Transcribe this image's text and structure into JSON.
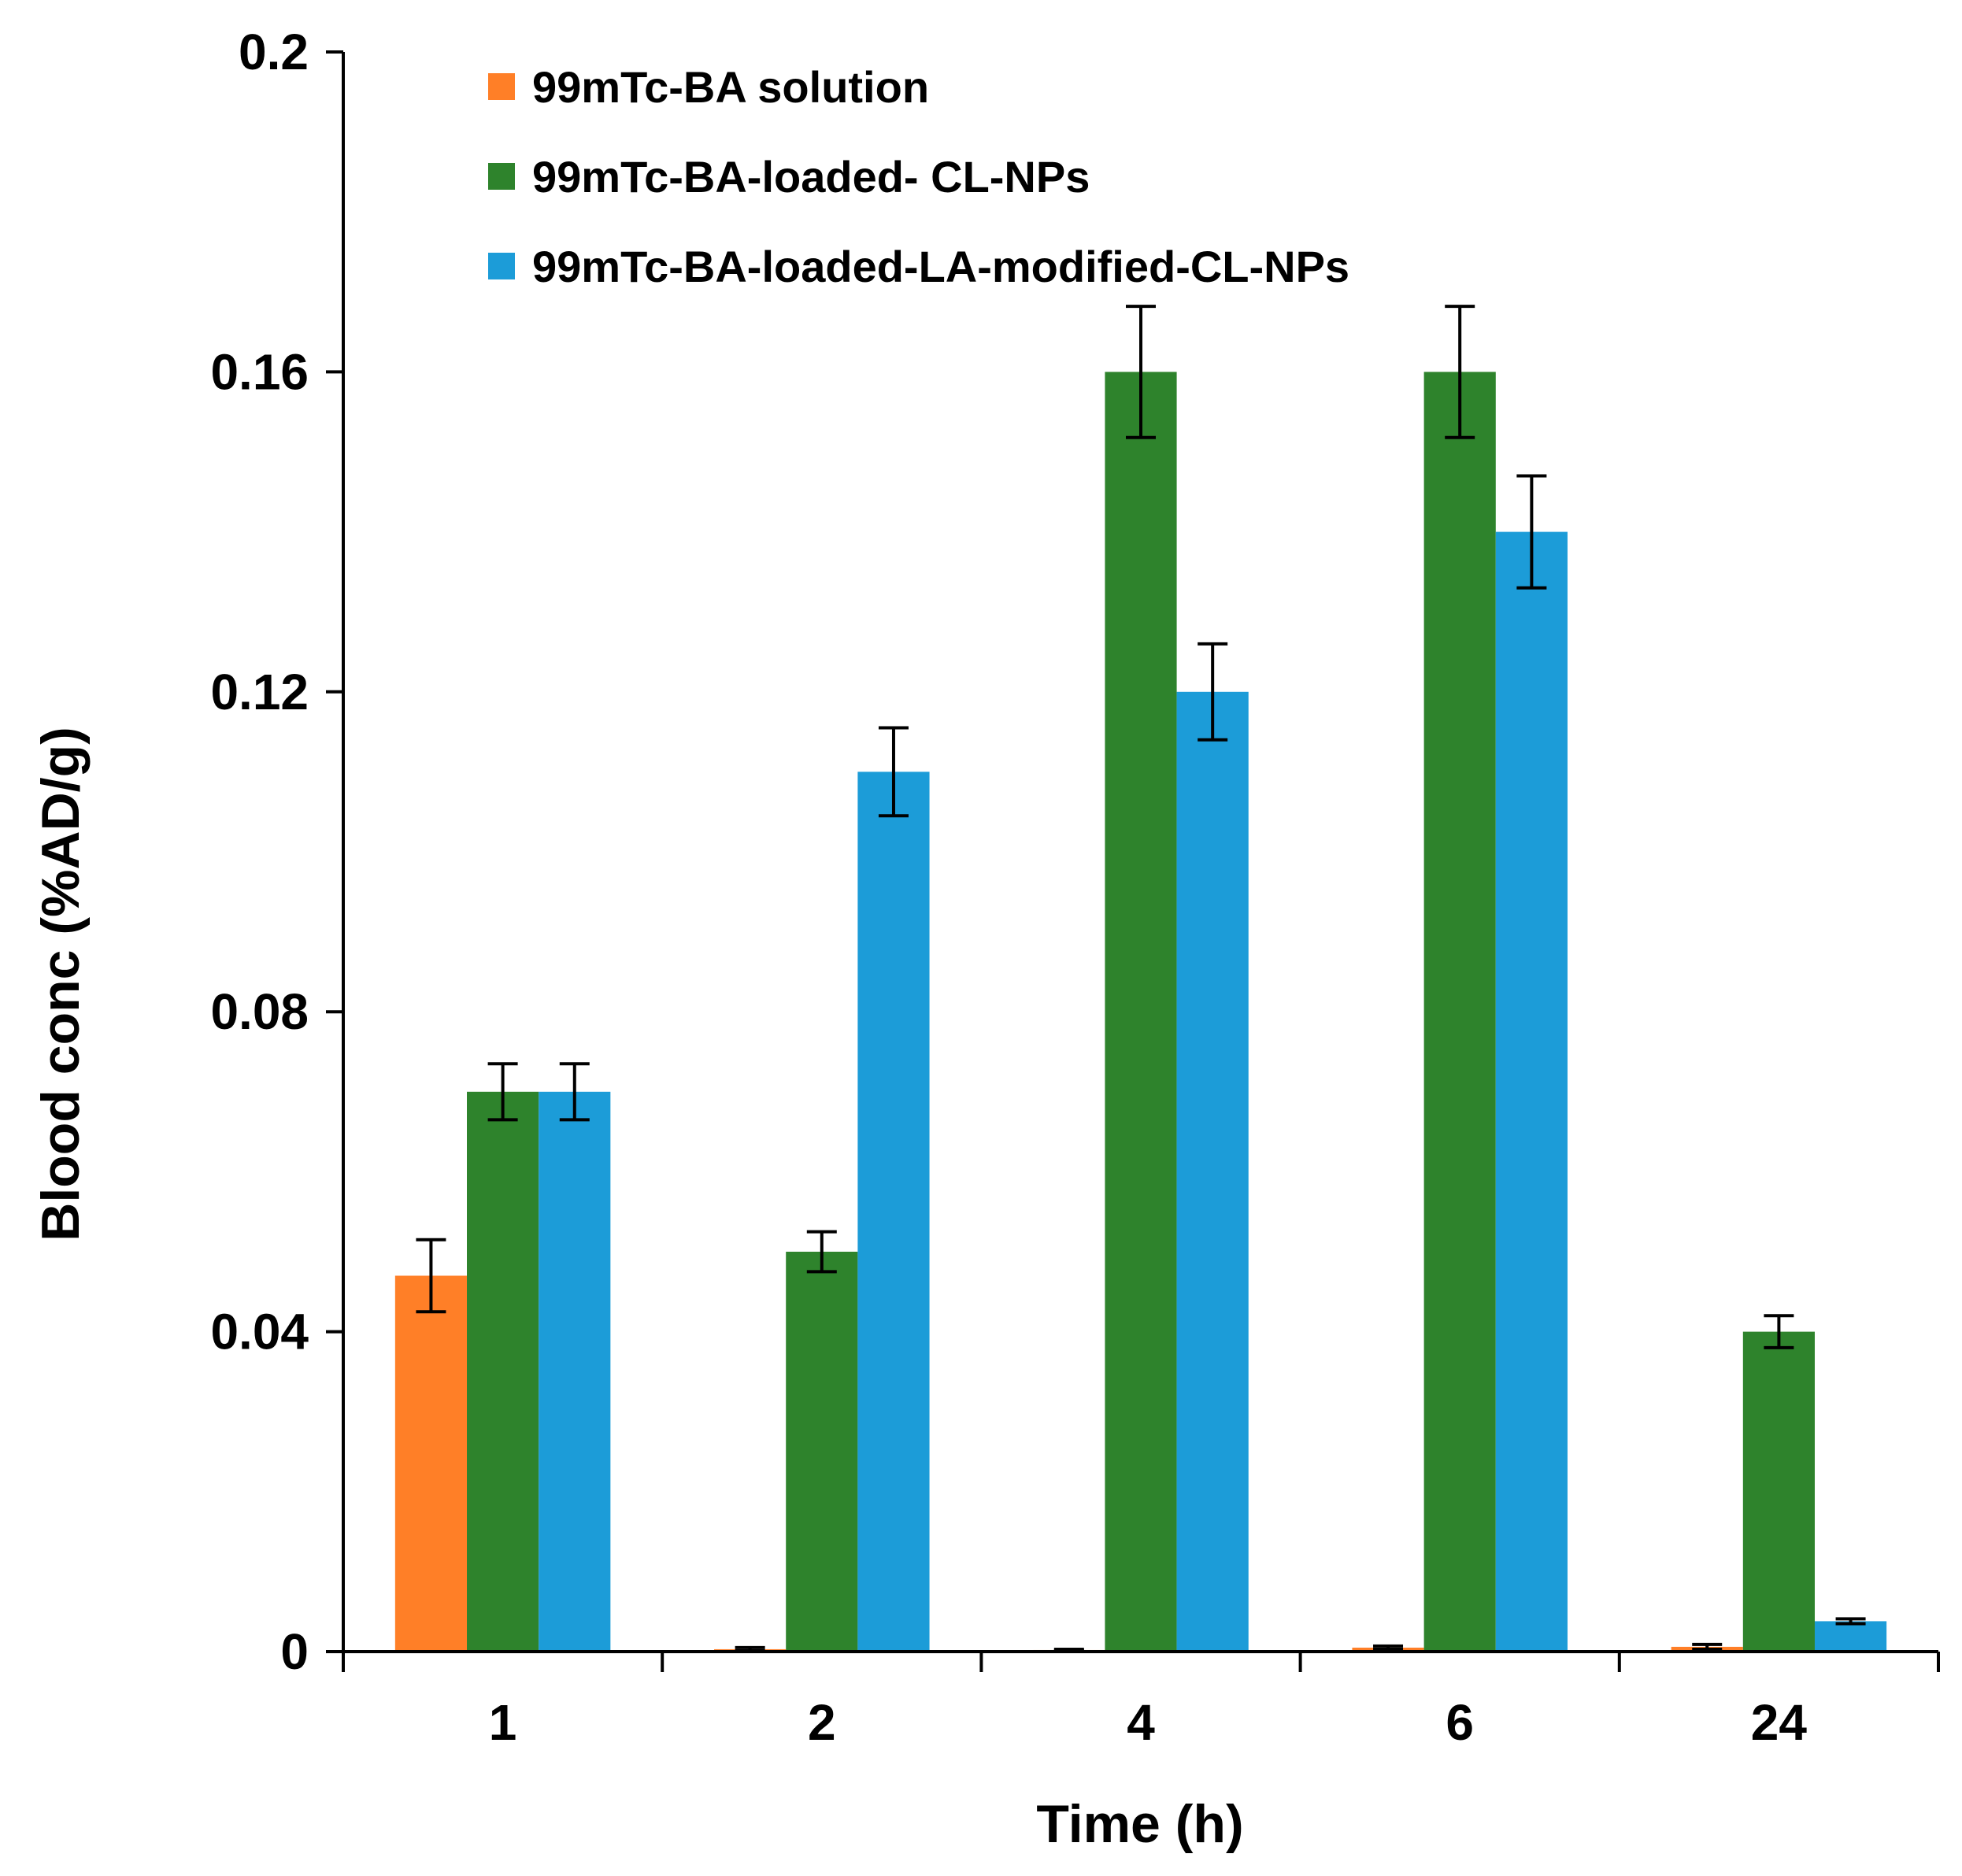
{
  "chart_data": {
    "type": "bar",
    "title": "",
    "xlabel": "Time (h)",
    "ylabel": "Blood conc (%AD/g)",
    "categories": [
      "1",
      "2",
      "4",
      "6",
      "24"
    ],
    "ylim": [
      0,
      0.2
    ],
    "yticks": [
      0,
      0.04,
      0.08,
      0.12,
      0.16,
      0.2
    ],
    "ytick_labels": [
      "0",
      "0.04",
      "0.08",
      "0.12",
      "0.16",
      "0.2"
    ],
    "grid": false,
    "legend_position": "top-left",
    "series": [
      {
        "name": "99mTc-BA solution",
        "color": "#FF7F27",
        "values": [
          0.047,
          0.0003,
          0.0002,
          0.0005,
          0.0006
        ],
        "errors": [
          0.0045,
          0.0002,
          0.0001,
          0.0002,
          0.0003
        ]
      },
      {
        "name": "99mTc-BA-loaded- CL-NPs",
        "color": "#2E832C",
        "values": [
          0.07,
          0.05,
          0.16,
          0.16,
          0.04
        ],
        "errors": [
          0.0035,
          0.0025,
          0.0082,
          0.0082,
          0.002
        ]
      },
      {
        "name": "99mTc-BA-loaded-LA-modified-CL-NPs",
        "color": "#1C9CD8",
        "values": [
          0.07,
          0.11,
          0.12,
          0.14,
          0.0038
        ],
        "errors": [
          0.0035,
          0.0055,
          0.006,
          0.007,
          0.0003
        ]
      }
    ]
  }
}
